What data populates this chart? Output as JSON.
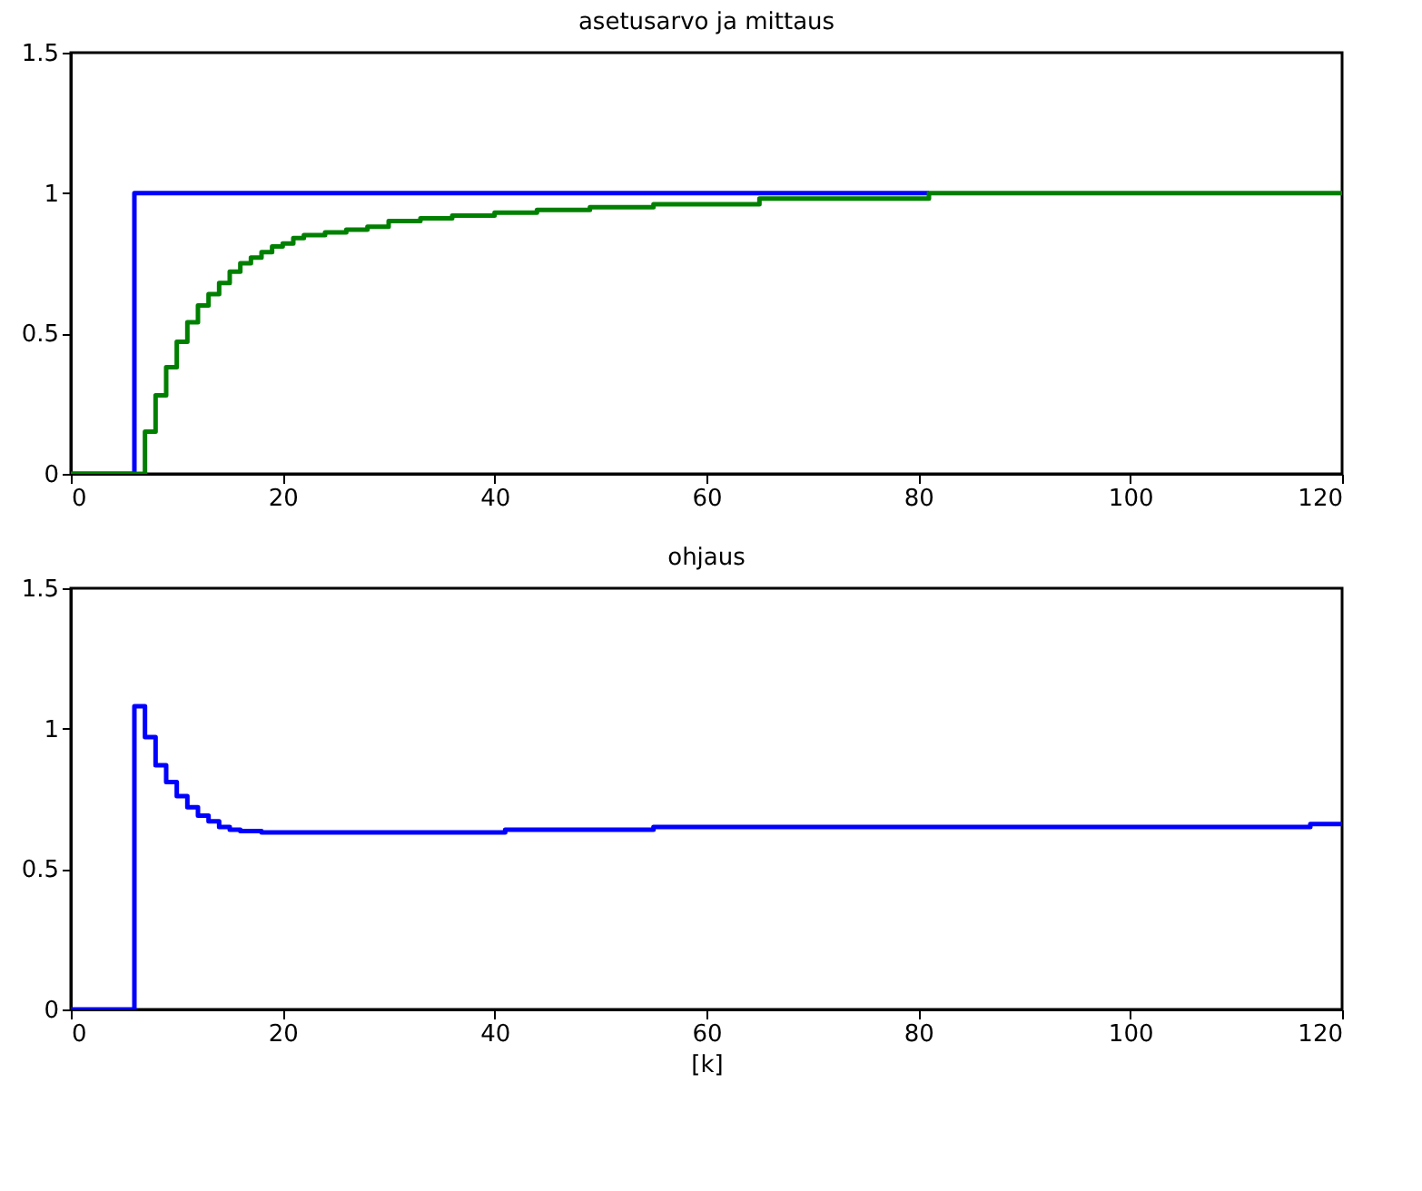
{
  "chart_data": [
    {
      "type": "step",
      "title": "asetusarvo ja mittaus",
      "xlim": [
        0,
        120
      ],
      "ylim": [
        0,
        1.5
      ],
      "xticks": [
        0,
        20,
        40,
        60,
        80,
        100,
        120
      ],
      "yticks": [
        0,
        0.5,
        1,
        1.5
      ],
      "grid": false,
      "line_style": "solid",
      "series": [
        {
          "color": "#0000ff",
          "x": [
            0,
            6,
            81
          ],
          "values": [
            0,
            1,
            1
          ]
        },
        {
          "color": "#008000",
          "x": [
            0,
            7,
            8,
            9,
            10,
            11,
            12,
            13,
            14,
            15,
            16,
            17,
            18,
            19,
            20,
            21,
            22,
            24,
            26,
            28,
            30,
            33,
            36,
            40,
            44,
            49,
            55,
            65,
            81,
            120
          ],
          "values": [
            0,
            0.15,
            0.28,
            0.38,
            0.47,
            0.54,
            0.6,
            0.64,
            0.68,
            0.72,
            0.75,
            0.77,
            0.79,
            0.81,
            0.82,
            0.84,
            0.85,
            0.86,
            0.87,
            0.88,
            0.9,
            0.91,
            0.92,
            0.93,
            0.94,
            0.95,
            0.96,
            0.98,
            1,
            1
          ]
        }
      ]
    },
    {
      "type": "step",
      "title": "ohjaus",
      "xlabel": "[k]",
      "xlim": [
        0,
        120
      ],
      "ylim": [
        0,
        1.5
      ],
      "xticks": [
        0,
        20,
        40,
        60,
        80,
        100,
        120
      ],
      "yticks": [
        0,
        0.5,
        1,
        1.5
      ],
      "grid": false,
      "line_style": "solid",
      "series": [
        {
          "color": "#0000ff",
          "x": [
            0,
            6,
            7,
            8,
            9,
            10,
            11,
            12,
            13,
            14,
            15,
            16,
            18,
            41,
            55,
            117,
            120
          ],
          "values": [
            0,
            1.08,
            0.97,
            0.87,
            0.81,
            0.76,
            0.72,
            0.69,
            0.67,
            0.65,
            0.64,
            0.635,
            0.63,
            0.64,
            0.65,
            0.66,
            0.66
          ]
        }
      ]
    }
  ]
}
